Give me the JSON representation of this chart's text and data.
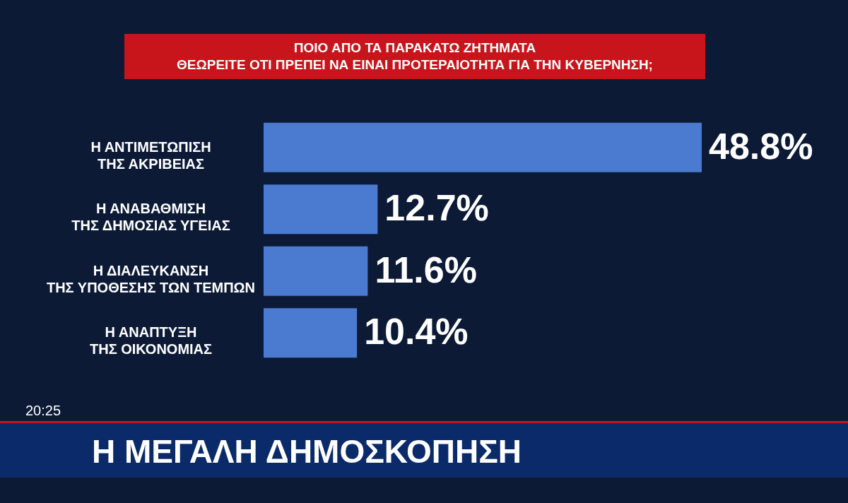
{
  "chart_data": {
    "type": "bar",
    "orientation": "horizontal",
    "title": "ΠΟΙΟ ΑΠΟ ΤΑ ΠΑΡΑΚΑΤΩ ΖΗΤΗΜΑΤΑ\nΘΕΩΡΕΙΤΕ ΟΤΙ ΠΡΕΠΕΙ ΝΑ ΕΙΝΑΙ ΠΡΟΤΕΡΑΙΟΤΗΤΑ ΓΙΑ ΤΗΝ ΚΥΒΕΡΝΗΣΗ;",
    "categories": [
      "Η ΑΝΤΙΜΕΤΩΠΙΣΗ\nΤΗΣ ΑΚΡΙΒΕΙΑΣ",
      "Η ΑΝΑΒΑΘΜΙΣΗ\nΤΗΣ ΔΗΜΟΣΙΑΣ ΥΓΕΙΑΣ",
      "Η ΔΙΑΛΕΥΚΑΝΣΗ\nΤΗΣ ΥΠΟΘΕΣΗΣ ΤΩΝ ΤΕΜΠΩΝ",
      "Η ΑΝΑΠΤΥΞΗ\nΤΗΣ ΟΙΚΟΝΟΜΙΑΣ"
    ],
    "values": [
      48.8,
      12.7,
      11.6,
      10.4
    ],
    "value_labels": [
      "48.8%",
      "12.7%",
      "11.6%",
      "10.4%"
    ],
    "color": "#4a7bd0",
    "annotations": [
      "20:25",
      "Η ΜΕΓΑΛΗ ΔΗΜΟΣΚΟΠΗΣΗ"
    ]
  }
}
